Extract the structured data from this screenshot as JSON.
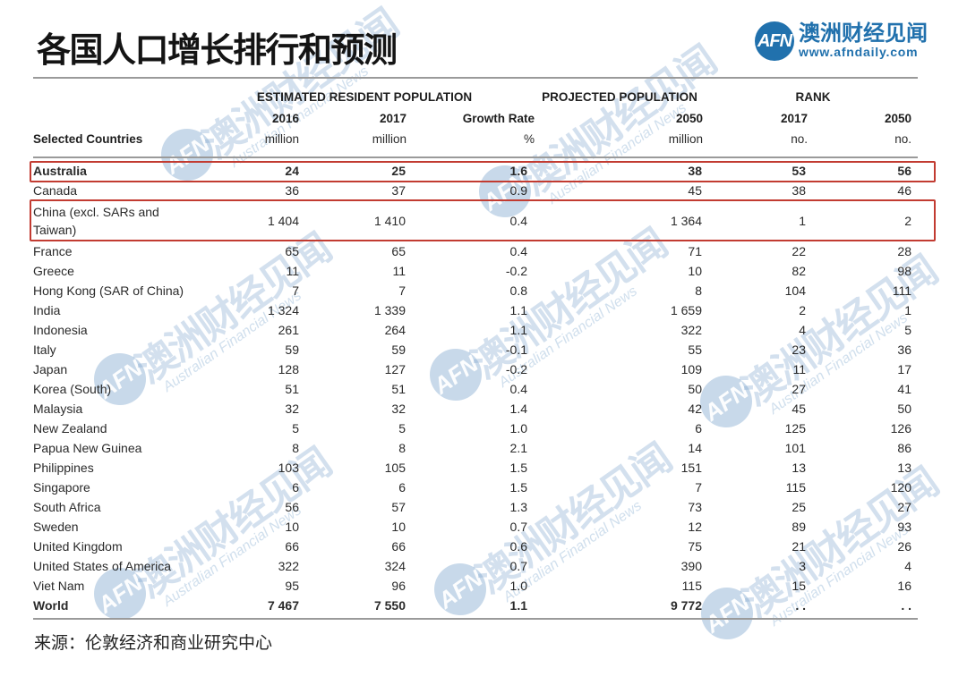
{
  "title": "各国人口增长排行和预测",
  "logo": {
    "abbr": "AFN",
    "name": "澳洲财经见闻",
    "url": "www.afndaily.com"
  },
  "watermark": {
    "abbr": "AFN",
    "cn": "澳洲财经见闻",
    "en": "Australian Financial News"
  },
  "source": "来源：伦敦经济和商业研究中心",
  "table": {
    "group_headers": [
      "ESTIMATED RESIDENT POPULATION",
      "PROJECTED POPULATION",
      "RANK"
    ],
    "row_label_header": "Selected Countries",
    "col_years": [
      "2016",
      "2017",
      "Growth Rate",
      "2050",
      "2017",
      "2050"
    ],
    "col_units": [
      "million",
      "million",
      "%",
      "million",
      "no.",
      "no."
    ],
    "rows": [
      {
        "country": "Australia",
        "values": [
          "24",
          "25",
          "1.6",
          "38",
          "53",
          "56"
        ],
        "bold": true,
        "boxed": true
      },
      {
        "country": "Canada",
        "values": [
          "36",
          "37",
          "0.9",
          "45",
          "38",
          "46"
        ]
      },
      {
        "country": "China (excl. SARs and Taiwan)",
        "values": [
          "1 404",
          "1 410",
          "0.4",
          "1 364",
          "1",
          "2"
        ],
        "boxed": true,
        "tall": true
      },
      {
        "country": "France",
        "values": [
          "65",
          "65",
          "0.4",
          "71",
          "22",
          "28"
        ]
      },
      {
        "country": "Greece",
        "values": [
          "11",
          "11",
          "-0.2",
          "10",
          "82",
          "98"
        ]
      },
      {
        "country": "Hong Kong (SAR of China)",
        "values": [
          "7",
          "7",
          "0.8",
          "8",
          "104",
          "111"
        ]
      },
      {
        "country": "India",
        "values": [
          "1 324",
          "1 339",
          "1.1",
          "1 659",
          "2",
          "1"
        ]
      },
      {
        "country": "Indonesia",
        "values": [
          "261",
          "264",
          "1.1",
          "322",
          "4",
          "5"
        ]
      },
      {
        "country": "Italy",
        "values": [
          "59",
          "59",
          "-0.1",
          "55",
          "23",
          "36"
        ]
      },
      {
        "country": "Japan",
        "values": [
          "128",
          "127",
          "-0.2",
          "109",
          "11",
          "17"
        ]
      },
      {
        "country": "Korea (South)",
        "values": [
          "51",
          "51",
          "0.4",
          "50",
          "27",
          "41"
        ]
      },
      {
        "country": "Malaysia",
        "values": [
          "32",
          "32",
          "1.4",
          "42",
          "45",
          "50"
        ]
      },
      {
        "country": "New Zealand",
        "values": [
          "5",
          "5",
          "1.0",
          "6",
          "125",
          "126"
        ]
      },
      {
        "country": "Papua New Guinea",
        "values": [
          "8",
          "8",
          "2.1",
          "14",
          "101",
          "86"
        ]
      },
      {
        "country": "Philippines",
        "values": [
          "103",
          "105",
          "1.5",
          "151",
          "13",
          "13"
        ]
      },
      {
        "country": "Singapore",
        "values": [
          "6",
          "6",
          "1.5",
          "7",
          "115",
          "120"
        ]
      },
      {
        "country": "South Africa",
        "values": [
          "56",
          "57",
          "1.3",
          "73",
          "25",
          "27"
        ]
      },
      {
        "country": "Sweden",
        "values": [
          "10",
          "10",
          "0.7",
          "12",
          "89",
          "93"
        ]
      },
      {
        "country": "United Kingdom",
        "values": [
          "66",
          "66",
          "0.6",
          "75",
          "21",
          "26"
        ]
      },
      {
        "country": "United States of America",
        "values": [
          "322",
          "324",
          "0.7",
          "390",
          "3",
          "4"
        ]
      },
      {
        "country": "Viet Nam",
        "values": [
          "95",
          "96",
          "1.0",
          "115",
          "15",
          "16"
        ]
      },
      {
        "country": "World",
        "values": [
          "7 467",
          "7 550",
          "1.1",
          "9 772",
          ". .",
          ". ."
        ],
        "bold": true
      }
    ]
  }
}
